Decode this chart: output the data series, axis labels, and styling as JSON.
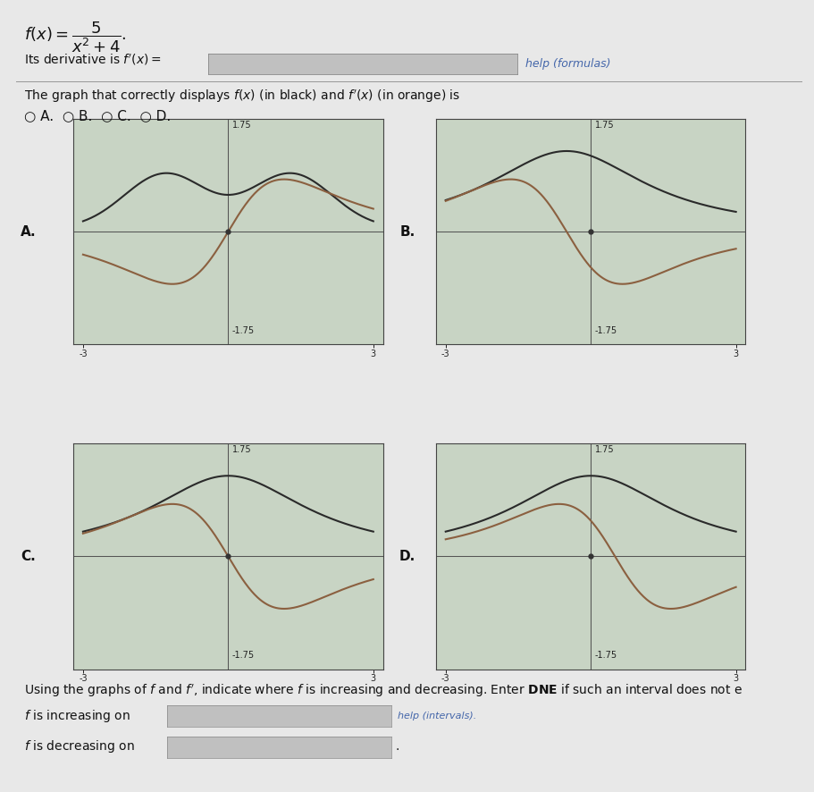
{
  "page_bg": "#e8e8e8",
  "graph_bg": "#c8d4c4",
  "f_color": "#2a2a2a",
  "fp_color": "#8B6040",
  "text_color": "#111111",
  "separator_color": "#999999",
  "input_box_color": "#c0c0c0",
  "input_box_edge": "#888888",
  "help_color": "#4466aa",
  "fp_scale": 2.0,
  "xlim": [
    -3.2,
    3.2
  ],
  "ylim": [
    -1.75,
    1.75
  ],
  "graph_line_color": "#555555",
  "dot_color": "#333333",
  "spine_color": "#444444",
  "tick_label_color": "#222222",
  "formula_fontsize": 13,
  "text_fontsize": 10,
  "small_fontsize": 8,
  "graph_label_fontsize": 10
}
